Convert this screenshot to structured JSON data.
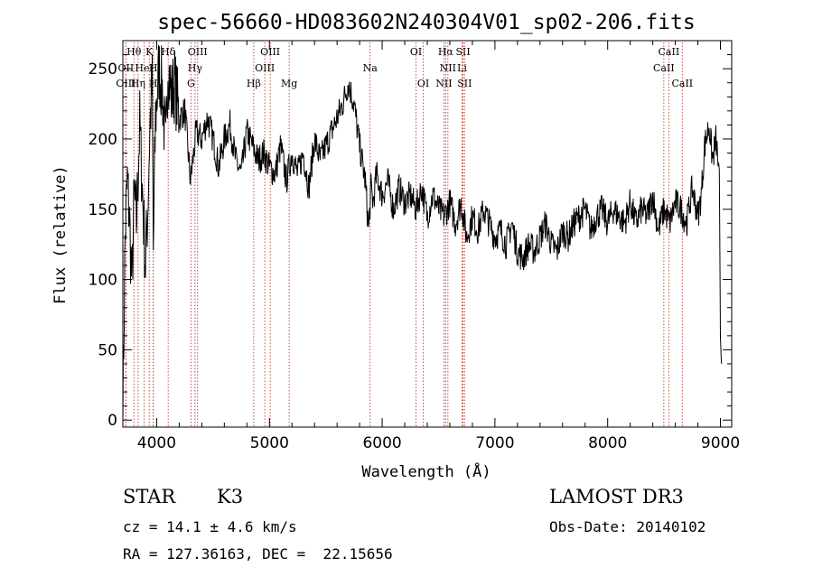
{
  "chart_data": {
    "type": "line",
    "title": "spec-56660-HD083602N240304V01_sp02-206.fits",
    "xlabel": "Wavelength (Å)",
    "ylabel": "Flux (relative)",
    "xlim": [
      3700,
      9100
    ],
    "ylim": [
      -5,
      270
    ],
    "x_ticks": [
      4000,
      5000,
      6000,
      7000,
      8000,
      9000
    ],
    "y_ticks": [
      0,
      50,
      100,
      150,
      200,
      250
    ],
    "series": [
      {
        "name": "flux",
        "x": [
          3700,
          3720,
          3740,
          3760,
          3780,
          3800,
          3820,
          3850,
          3880,
          3900,
          3920,
          3940,
          3960,
          3970,
          3990,
          4020,
          4050,
          4080,
          4100,
          4130,
          4160,
          4200,
          4250,
          4300,
          4350,
          4400,
          4450,
          4500,
          4550,
          4600,
          4650,
          4700,
          4750,
          4800,
          4850,
          4900,
          4950,
          5000,
          5050,
          5100,
          5150,
          5200,
          5250,
          5300,
          5350,
          5400,
          5450,
          5500,
          5550,
          5600,
          5650,
          5700,
          5750,
          5800,
          5850,
          5880,
          5900,
          5920,
          5950,
          6000,
          6050,
          6100,
          6150,
          6200,
          6250,
          6300,
          6350,
          6400,
          6450,
          6500,
          6550,
          6600,
          6650,
          6700,
          6750,
          6800,
          6850,
          6900,
          6950,
          7000,
          7050,
          7100,
          7150,
          7200,
          7250,
          7300,
          7350,
          7400,
          7450,
          7500,
          7550,
          7600,
          7650,
          7700,
          7750,
          7800,
          7850,
          7900,
          7950,
          8000,
          8050,
          8100,
          8150,
          8200,
          8250,
          8300,
          8350,
          8400,
          8450,
          8500,
          8550,
          8600,
          8650,
          8700,
          8750,
          8800,
          8830,
          8860,
          8900,
          8930,
          8960,
          8990,
          9000,
          9010
        ],
        "y": [
          5,
          130,
          170,
          140,
          95,
          160,
          140,
          210,
          150,
          110,
          150,
          210,
          240,
          120,
          215,
          250,
          235,
          190,
          255,
          230,
          240,
          215,
          220,
          170,
          205,
          200,
          215,
          200,
          180,
          200,
          210,
          185,
          175,
          205,
          195,
          185,
          190,
          180,
          175,
          195,
          170,
          190,
          175,
          190,
          165,
          200,
          185,
          195,
          205,
          215,
          225,
          240,
          225,
          195,
          170,
          135,
          165,
          155,
          175,
          160,
          170,
          150,
          165,
          155,
          160,
          150,
          165,
          145,
          160,
          150,
          145,
          155,
          140,
          155,
          130,
          145,
          135,
          150,
          140,
          130,
          135,
          125,
          140,
          120,
          115,
          125,
          120,
          130,
          140,
          125,
          120,
          135,
          130,
          140,
          145,
          150,
          135,
          145,
          150,
          140,
          150,
          145,
          140,
          155,
          140,
          150,
          145,
          160,
          135,
          150,
          140,
          155,
          150,
          140,
          165,
          145,
          160,
          195,
          210,
          185,
          200,
          175,
          60,
          40
        ]
      }
    ],
    "lines": [
      {
        "label": "Hθ",
        "x": 3798,
        "row": 0
      },
      {
        "label": "OII",
        "x": 3727,
        "row": 1
      },
      {
        "label": "OIII",
        "x": 3727,
        "row": 2
      },
      {
        "label": "K",
        "x": 3934,
        "row": 0
      },
      {
        "label": "HeI",
        "x": 3889,
        "row": 1
      },
      {
        "label": "Hη",
        "x": 3835,
        "row": 2
      },
      {
        "label": "Hδ",
        "x": 4102,
        "row": 0
      },
      {
        "label": "H",
        "x": 3970,
        "row": 1
      },
      {
        "label": "H",
        "x": 3970,
        "row": 2
      },
      {
        "label": "OIII",
        "x": 4363,
        "row": 0
      },
      {
        "label": "Hγ",
        "x": 4340,
        "row": 1
      },
      {
        "label": "G",
        "x": 4304,
        "row": 2
      },
      {
        "label": "OIII",
        "x": 5007,
        "row": 0
      },
      {
        "label": "OIII",
        "x": 4959,
        "row": 1
      },
      {
        "label": "Hβ",
        "x": 4861,
        "row": 2
      },
      {
        "label": "Mg",
        "x": 5175,
        "row": 2
      },
      {
        "label": "Na",
        "x": 5893,
        "row": 1
      },
      {
        "label": "OI",
        "x": 6300,
        "row": 0
      },
      {
        "label": "OI",
        "x": 6364,
        "row": 2
      },
      {
        "label": "Hα",
        "x": 6563,
        "row": 0
      },
      {
        "label": "NII",
        "x": 6583,
        "row": 1
      },
      {
        "label": "NII",
        "x": 6548,
        "row": 2
      },
      {
        "label": "SII",
        "x": 6717,
        "row": 0
      },
      {
        "label": "Li",
        "x": 6708,
        "row": 1
      },
      {
        "label": "SII",
        "x": 6731,
        "row": 2
      },
      {
        "label": "CaII",
        "x": 8542,
        "row": 0
      },
      {
        "label": "CaII",
        "x": 8498,
        "row": 1
      },
      {
        "label": "CaII",
        "x": 8662,
        "row": 2
      }
    ]
  },
  "info": {
    "object_type": "STAR",
    "subclass": "K3",
    "survey": "LAMOST DR3",
    "cz": "cz = 14.1 ± 4.6 km/s",
    "obs_date": "Obs-Date: 20140102",
    "coords": "RA = 127.36163, DEC =  22.15656"
  }
}
